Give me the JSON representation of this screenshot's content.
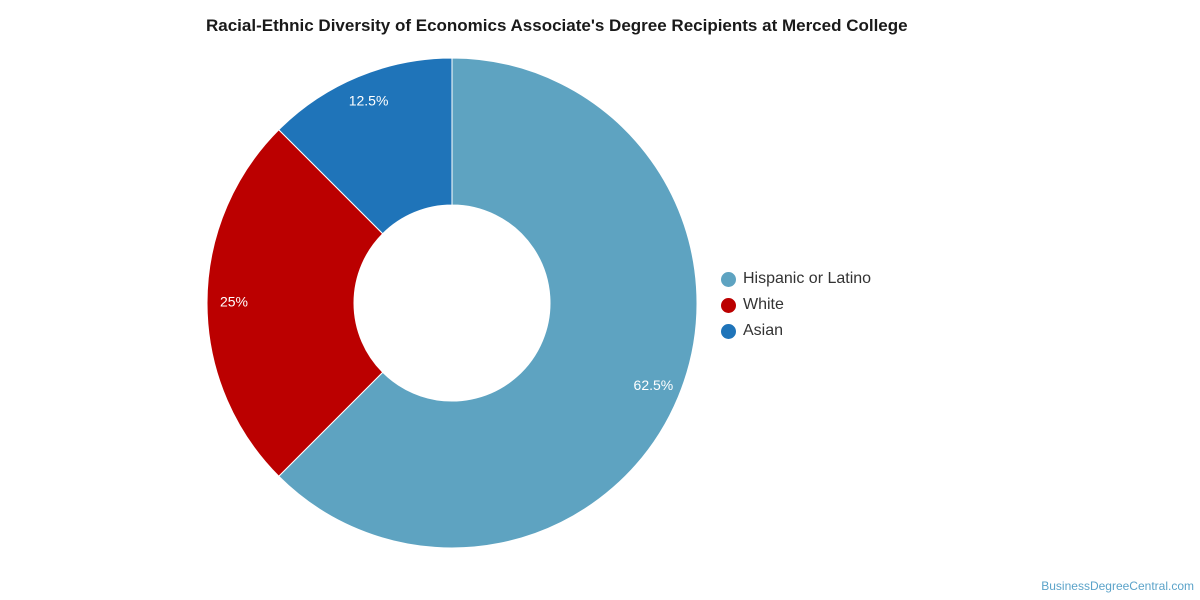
{
  "chart_data": {
    "type": "pie",
    "title": "Racial-Ethnic Diversity of Economics Associate's Degree Recipients at Merced College",
    "donut": true,
    "legend_position": "right",
    "slices": [
      {
        "label": "Hispanic or Latino",
        "value": 62.5,
        "display": "62.5%",
        "color": "#5ea3c1"
      },
      {
        "label": "White",
        "value": 25,
        "display": "25%",
        "color": "#bb0000"
      },
      {
        "label": "Asian",
        "value": 12.5,
        "display": "12.5%",
        "color": "#1f74b9"
      }
    ]
  },
  "source": "BusinessDegreeCentral.com"
}
